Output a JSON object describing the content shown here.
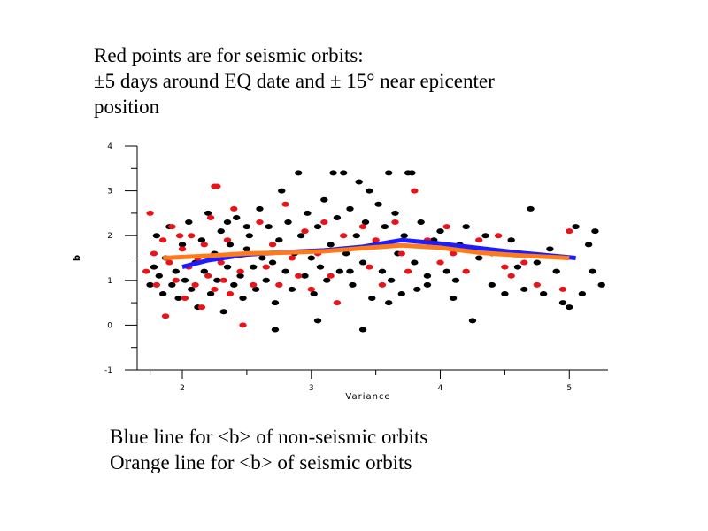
{
  "captions": {
    "top": [
      "Red points are for seismic orbits:",
      "±5 days around EQ date and ± 15° near epicenter",
      "position"
    ],
    "bottom": [
      "Blue line for <b> of non-seismic orbits",
      "Orange line for <b> of seismic orbits"
    ]
  },
  "chart_data": {
    "type": "scatter",
    "xlabel": "Variance",
    "ylabel": "b",
    "xlim": [
      1.65,
      5.3
    ],
    "ylim": [
      -1,
      4
    ],
    "xticks": [
      2,
      3,
      4,
      5
    ],
    "yticks": [
      -1,
      0,
      1,
      2,
      3,
      4
    ],
    "grid": false,
    "colors": {
      "non_seismic_points": "#000000",
      "seismic_points": "#e8141a",
      "non_seismic_line": "#1c1cff",
      "seismic_line": "#ff7a1a"
    },
    "series": [
      {
        "kind": "points",
        "color_key": "non_seismic_points",
        "points": [
          [
            1.75,
            0.9
          ],
          [
            1.78,
            1.3
          ],
          [
            1.8,
            2.0
          ],
          [
            1.82,
            1.1
          ],
          [
            1.85,
            0.7
          ],
          [
            1.87,
            1.5
          ],
          [
            1.9,
            2.2
          ],
          [
            1.92,
            0.9
          ],
          [
            1.95,
            1.2
          ],
          [
            1.97,
            0.6
          ],
          [
            2.0,
            1.8
          ],
          [
            2.02,
            1.0
          ],
          [
            2.05,
            2.3
          ],
          [
            2.07,
            0.8
          ],
          [
            2.1,
            1.4
          ],
          [
            2.12,
            0.4
          ],
          [
            2.15,
            1.9
          ],
          [
            2.17,
            1.2
          ],
          [
            2.2,
            2.5
          ],
          [
            2.22,
            0.7
          ],
          [
            2.25,
            1.6
          ],
          [
            2.27,
            1.0
          ],
          [
            2.3,
            2.1
          ],
          [
            2.32,
            0.3
          ],
          [
            2.35,
            1.3
          ],
          [
            2.37,
            1.8
          ],
          [
            2.4,
            0.9
          ],
          [
            2.42,
            2.4
          ],
          [
            2.45,
            1.1
          ],
          [
            2.47,
            0.6
          ],
          [
            2.5,
            1.7
          ],
          [
            2.52,
            2.0
          ],
          [
            2.55,
            1.3
          ],
          [
            2.57,
            0.8
          ],
          [
            2.6,
            2.6
          ],
          [
            2.62,
            1.5
          ],
          [
            2.65,
            1.0
          ],
          [
            2.67,
            2.2
          ],
          [
            2.7,
            1.4
          ],
          [
            2.72,
            0.5
          ],
          [
            2.75,
            1.9
          ],
          [
            2.77,
            3.0
          ],
          [
            2.8,
            1.2
          ],
          [
            2.82,
            2.3
          ],
          [
            2.85,
            0.8
          ],
          [
            2.87,
            1.6
          ],
          [
            2.9,
            3.4
          ],
          [
            2.92,
            2.0
          ],
          [
            2.95,
            1.1
          ],
          [
            2.97,
            2.5
          ],
          [
            3.0,
            1.5
          ],
          [
            3.02,
            0.7
          ],
          [
            3.05,
            2.2
          ],
          [
            3.07,
            1.3
          ],
          [
            3.1,
            2.8
          ],
          [
            3.12,
            1.0
          ],
          [
            3.15,
            1.8
          ],
          [
            3.17,
            3.4
          ],
          [
            3.2,
            2.4
          ],
          [
            3.22,
            1.2
          ],
          [
            3.25,
            3.4
          ],
          [
            3.27,
            1.6
          ],
          [
            3.3,
            2.6
          ],
          [
            3.32,
            0.9
          ],
          [
            3.35,
            2.0
          ],
          [
            3.37,
            3.2
          ],
          [
            3.4,
            1.4
          ],
          [
            3.42,
            2.3
          ],
          [
            3.45,
            3.0
          ],
          [
            3.47,
            0.6
          ],
          [
            3.5,
            1.8
          ],
          [
            3.52,
            2.7
          ],
          [
            3.55,
            1.2
          ],
          [
            3.57,
            2.2
          ],
          [
            3.6,
            3.4
          ],
          [
            3.62,
            1.0
          ],
          [
            3.65,
            2.5
          ],
          [
            3.67,
            1.6
          ],
          [
            3.7,
            0.7
          ],
          [
            3.72,
            2.0
          ],
          [
            3.75,
            3.4
          ],
          [
            3.8,
            1.4
          ],
          [
            3.85,
            2.3
          ],
          [
            3.9,
            0.9
          ],
          [
            3.95,
            1.9
          ],
          [
            4.0,
            2.1
          ],
          [
            4.05,
            1.2
          ],
          [
            4.1,
            0.6
          ],
          [
            4.15,
            1.8
          ],
          [
            4.2,
            2.2
          ],
          [
            4.25,
            0.1
          ],
          [
            4.3,
            1.5
          ],
          [
            4.35,
            2.0
          ],
          [
            4.4,
            0.9
          ],
          [
            4.45,
            1.6
          ],
          [
            4.5,
            0.7
          ],
          [
            4.55,
            1.9
          ],
          [
            4.6,
            1.3
          ],
          [
            4.65,
            0.8
          ],
          [
            4.7,
            2.6
          ],
          [
            4.75,
            1.4
          ],
          [
            4.8,
            0.7
          ],
          [
            4.85,
            1.7
          ],
          [
            4.9,
            1.2
          ],
          [
            4.95,
            0.5
          ],
          [
            5.0,
            0.4
          ],
          [
            5.05,
            2.2
          ],
          [
            5.1,
            0.7
          ],
          [
            5.15,
            1.8
          ],
          [
            5.2,
            2.1
          ],
          [
            5.25,
            0.9
          ],
          [
            5.18,
            1.2
          ],
          [
            3.4,
            -0.1
          ],
          [
            2.72,
            -0.1
          ],
          [
            3.05,
            0.1
          ],
          [
            3.6,
            0.5
          ],
          [
            3.9,
            1.1
          ],
          [
            3.3,
            1.2
          ],
          [
            2.5,
            2.2
          ],
          [
            2.35,
            2.3
          ],
          [
            3.82,
            0.8
          ],
          [
            4.12,
            1.0
          ],
          [
            3.78,
            3.4
          ]
        ]
      },
      {
        "kind": "points",
        "color_key": "seismic_points",
        "points": [
          [
            1.72,
            1.2
          ],
          [
            1.75,
            2.5
          ],
          [
            1.78,
            1.6
          ],
          [
            1.8,
            0.9
          ],
          [
            1.85,
            1.9
          ],
          [
            1.87,
            0.2
          ],
          [
            1.9,
            1.4
          ],
          [
            1.92,
            2.2
          ],
          [
            1.95,
            1.0
          ],
          [
            2.0,
            1.7
          ],
          [
            2.02,
            0.6
          ],
          [
            2.05,
            1.3
          ],
          [
            2.07,
            2.0
          ],
          [
            2.1,
            0.9
          ],
          [
            2.12,
            1.5
          ],
          [
            2.15,
            0.4
          ],
          [
            2.17,
            1.8
          ],
          [
            2.2,
            1.1
          ],
          [
            2.22,
            2.4
          ],
          [
            2.25,
            0.8
          ],
          [
            2.27,
            3.1
          ],
          [
            2.3,
            1.4
          ],
          [
            2.32,
            1.0
          ],
          [
            2.35,
            1.9
          ],
          [
            2.37,
            0.7
          ],
          [
            2.4,
            2.6
          ],
          [
            2.45,
            1.2
          ],
          [
            2.47,
            0.0
          ],
          [
            2.5,
            1.6
          ],
          [
            2.55,
            0.9
          ],
          [
            2.6,
            2.3
          ],
          [
            2.65,
            1.3
          ],
          [
            2.7,
            1.8
          ],
          [
            2.75,
            0.9
          ],
          [
            2.8,
            2.7
          ],
          [
            2.85,
            1.5
          ],
          [
            2.9,
            1.1
          ],
          [
            2.95,
            2.1
          ],
          [
            3.0,
            0.8
          ],
          [
            3.05,
            1.6
          ],
          [
            3.1,
            2.3
          ],
          [
            3.15,
            1.1
          ],
          [
            3.2,
            0.5
          ],
          [
            3.25,
            2.0
          ],
          [
            3.3,
            1.7
          ],
          [
            3.4,
            2.2
          ],
          [
            3.45,
            1.3
          ],
          [
            3.5,
            1.9
          ],
          [
            3.55,
            0.9
          ],
          [
            3.65,
            2.3
          ],
          [
            3.7,
            1.6
          ],
          [
            3.75,
            1.2
          ],
          [
            3.8,
            3.0
          ],
          [
            3.9,
            1.9
          ],
          [
            4.0,
            1.4
          ],
          [
            4.05,
            2.2
          ],
          [
            4.1,
            1.6
          ],
          [
            4.15,
            1.7
          ],
          [
            4.2,
            1.2
          ],
          [
            4.3,
            1.9
          ],
          [
            4.4,
            1.6
          ],
          [
            4.45,
            2.0
          ],
          [
            4.5,
            1.3
          ],
          [
            4.55,
            1.1
          ],
          [
            4.65,
            1.4
          ],
          [
            4.75,
            0.9
          ],
          [
            4.95,
            0.8
          ],
          [
            5.0,
            2.1
          ],
          [
            2.25,
            3.1
          ],
          [
            1.98,
            2.0
          ]
        ]
      },
      {
        "kind": "line",
        "name": "<b> of non-seismic orbits",
        "color_key": "non_seismic_line",
        "points": [
          [
            2.0,
            1.3
          ],
          [
            2.2,
            1.45
          ],
          [
            2.5,
            1.58
          ],
          [
            2.8,
            1.63
          ],
          [
            3.1,
            1.67
          ],
          [
            3.4,
            1.75
          ],
          [
            3.7,
            1.9
          ],
          [
            4.0,
            1.82
          ],
          [
            4.3,
            1.72
          ],
          [
            4.6,
            1.62
          ],
          [
            5.05,
            1.5
          ]
        ]
      },
      {
        "kind": "line",
        "name": "<b> of seismic orbits",
        "color_key": "seismic_line",
        "points": [
          [
            1.85,
            1.5
          ],
          [
            2.2,
            1.55
          ],
          [
            2.5,
            1.6
          ],
          [
            2.8,
            1.62
          ],
          [
            3.1,
            1.65
          ],
          [
            3.4,
            1.72
          ],
          [
            3.7,
            1.78
          ],
          [
            4.0,
            1.73
          ],
          [
            4.3,
            1.62
          ],
          [
            4.6,
            1.56
          ],
          [
            5.0,
            1.5
          ]
        ]
      }
    ]
  }
}
